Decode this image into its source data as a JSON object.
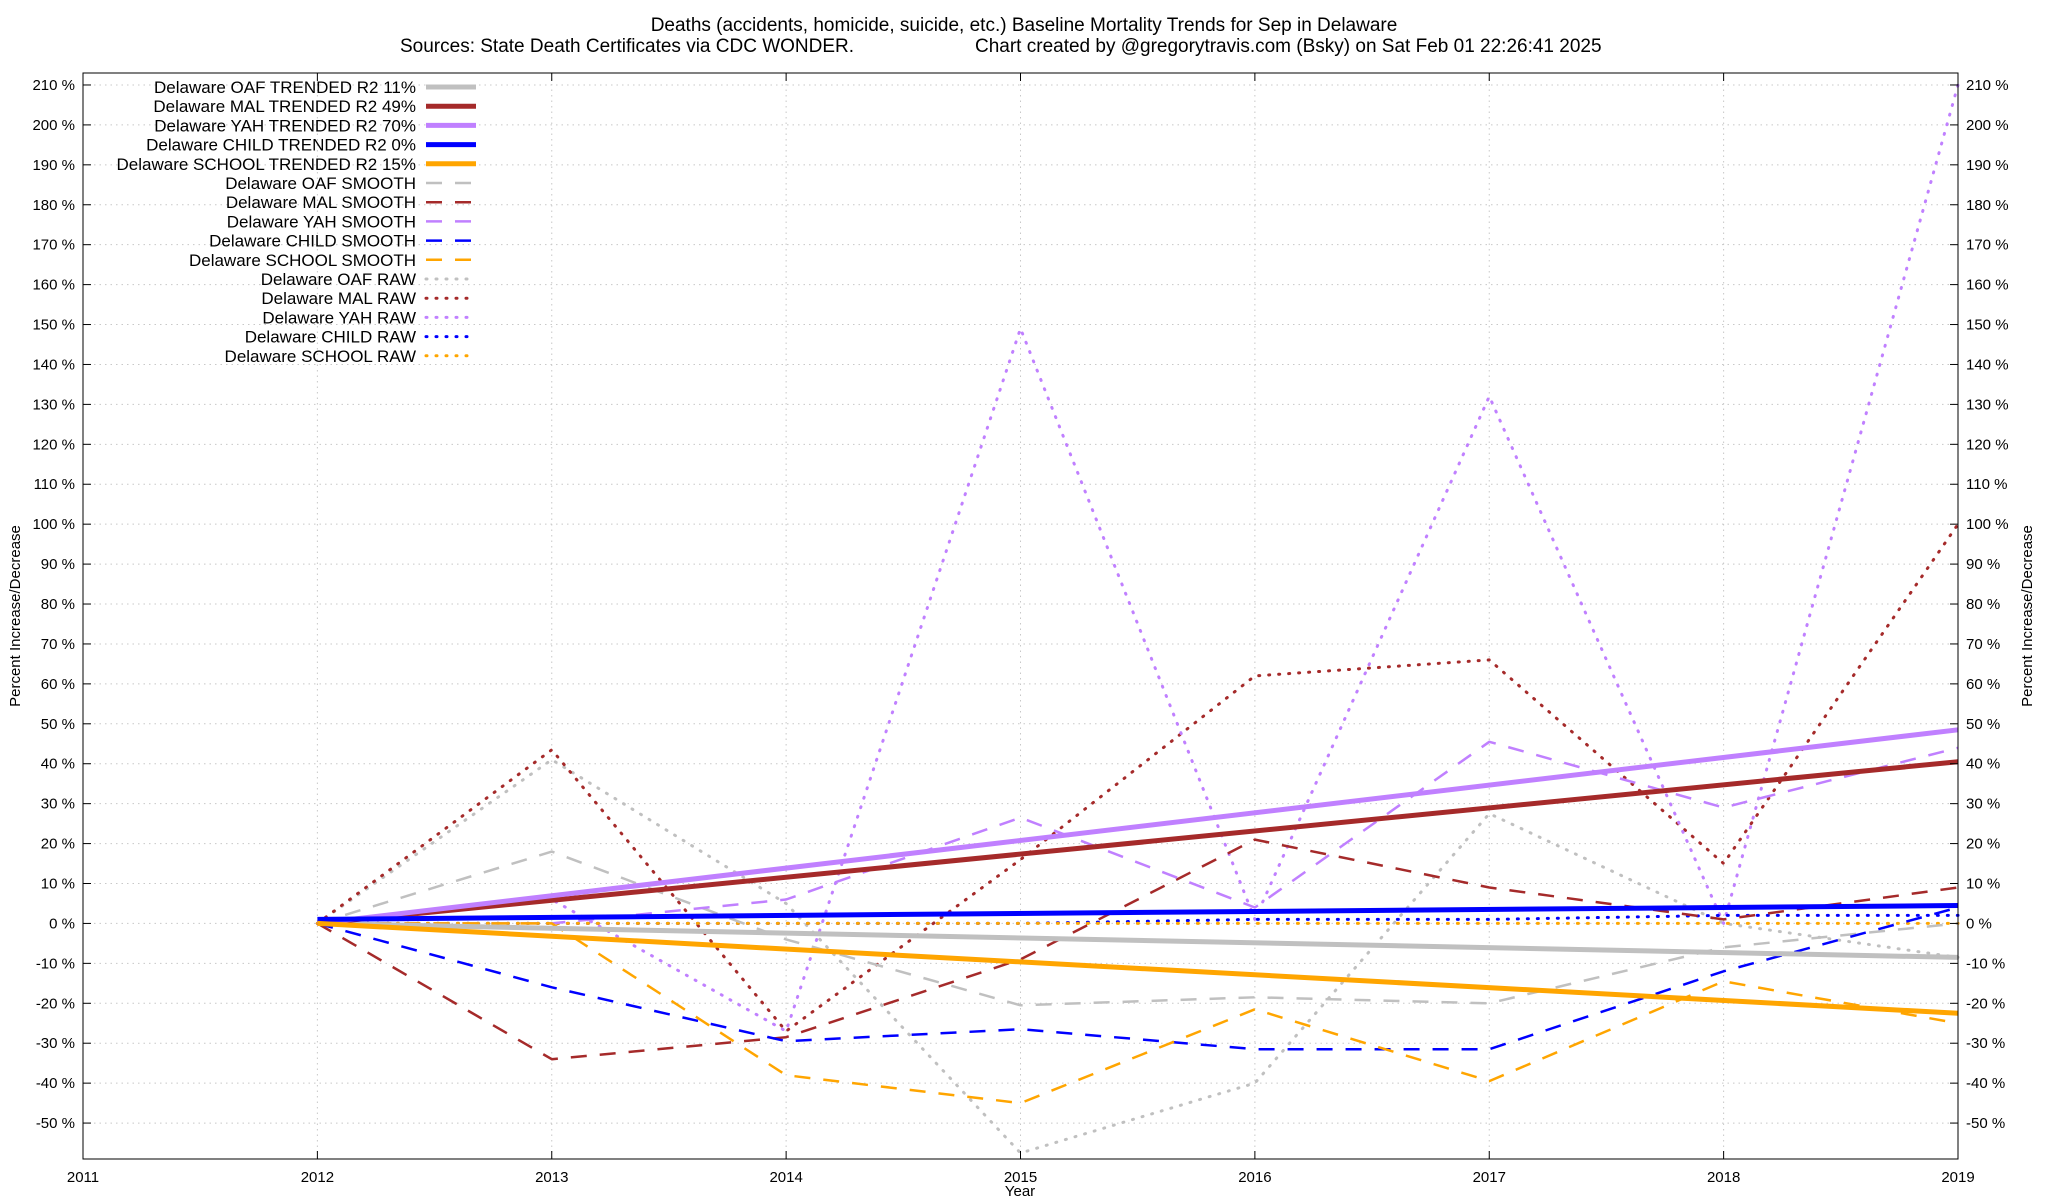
{
  "chart_data": {
    "type": "line",
    "title": "Deaths (accidents, homicide, suicide, etc.)  Baseline Mortality Trends for Sep in Delaware",
    "subtitle_left": "Sources: State Death Certificates via CDC WONDER.",
    "subtitle_right": "Chart created by @gregorytravis.com (Bsky) on Sat Feb 01 22:26:41 2025",
    "xlabel": "Year",
    "ylabel": "Percent Increase/Decrease",
    "ylabel_right": "Percent Increase/Decrease",
    "xlim": [
      2011,
      2019
    ],
    "ylim": [
      -59,
      213
    ],
    "x_ticks": [
      2011,
      2012,
      2013,
      2014,
      2015,
      2016,
      2017,
      2018,
      2019
    ],
    "x_tick_labels": [
      "2011",
      "2012",
      "2013",
      "2014",
      "2015",
      "2016",
      "2017",
      "2018",
      "2019"
    ],
    "y_ticks": [
      -50,
      -40,
      -30,
      -20,
      -10,
      0,
      10,
      20,
      30,
      40,
      50,
      60,
      70,
      80,
      90,
      100,
      110,
      120,
      130,
      140,
      150,
      160,
      170,
      180,
      190,
      200,
      210
    ],
    "y_tick_labels": [
      "-50 %",
      "-40 %",
      "-30 %",
      "-20 %",
      "-10 %",
      "0 %",
      "10 %",
      "20 %",
      "30 %",
      "40 %",
      "50 %",
      "60 %",
      "70 %",
      "80 %",
      "90 %",
      "100 %",
      "110 %",
      "120 %",
      "130 %",
      "140 %",
      "150 %",
      "160 %",
      "170 %",
      "180 %",
      "190 %",
      "200 %",
      "210 %"
    ],
    "grid": true,
    "legend_position": "top-left",
    "series": [
      {
        "name": "Delaware OAF TRENDED R2  11%",
        "style": "solid",
        "color": "#c0c0c0",
        "x": [
          2012,
          2019
        ],
        "values": [
          0,
          -8.5
        ]
      },
      {
        "name": "Delaware MAL TRENDED R2  49%",
        "style": "solid",
        "color": "#a52a2a",
        "x": [
          2012,
          2019
        ],
        "values": [
          0,
          40.5
        ]
      },
      {
        "name": "Delaware YAH TRENDED R2  70%",
        "style": "solid",
        "color": "#c080ff",
        "x": [
          2012,
          2019
        ],
        "values": [
          0,
          48.5
        ]
      },
      {
        "name": "Delaware CHILD TRENDED R2  0%",
        "style": "solid",
        "color": "#0000ff",
        "x": [
          2012,
          2019
        ],
        "values": [
          1,
          4.5
        ]
      },
      {
        "name": "Delaware SCHOOL TRENDED R2  15%",
        "style": "solid",
        "color": "#ffa500",
        "x": [
          2012,
          2019
        ],
        "values": [
          0,
          -22.5
        ]
      },
      {
        "name": "Delaware OAF SMOOTH",
        "style": "dashed",
        "color": "#c0c0c0",
        "x": [
          2012,
          2013,
          2014,
          2015,
          2016,
          2017,
          2018,
          2019
        ],
        "values": [
          0,
          18,
          -4,
          -20.5,
          -18.5,
          -20,
          -6,
          0
        ]
      },
      {
        "name": "Delaware MAL SMOOTH",
        "style": "dashed",
        "color": "#a52a2a",
        "x": [
          2012,
          2013,
          2014,
          2015,
          2016,
          2017,
          2018,
          2019
        ],
        "values": [
          0,
          -34,
          -28.5,
          -9,
          21,
          9,
          1,
          9
        ]
      },
      {
        "name": "Delaware YAH SMOOTH",
        "style": "dashed",
        "color": "#c080ff",
        "x": [
          2012,
          2013,
          2014,
          2015,
          2016,
          2017,
          2018,
          2019
        ],
        "values": [
          0,
          0,
          6,
          26.5,
          4,
          45.5,
          29,
          44
        ]
      },
      {
        "name": "Delaware CHILD SMOOTH",
        "style": "dashed",
        "color": "#0000ff",
        "x": [
          2012,
          2013,
          2014,
          2015,
          2016,
          2017,
          2018,
          2019
        ],
        "values": [
          0,
          -16,
          -29.5,
          -26.5,
          -31.5,
          -31.5,
          -12,
          4
        ]
      },
      {
        "name": "Delaware SCHOOL SMOOTH",
        "style": "dashed",
        "color": "#ffa500",
        "x": [
          2012,
          2013,
          2014,
          2015,
          2016,
          2017,
          2018,
          2019
        ],
        "values": [
          0,
          0,
          -38,
          -45,
          -21.5,
          -39.5,
          -14.5,
          -25
        ]
      },
      {
        "name": "Delaware OAF RAW",
        "style": "dotted",
        "color": "#c0c0c0",
        "x": [
          2012,
          2013,
          2014,
          2015,
          2016,
          2017,
          2018,
          2019
        ],
        "values": [
          0,
          41,
          5,
          -57.5,
          -40,
          27.5,
          0,
          -8.5
        ]
      },
      {
        "name": "Delaware MAL RAW",
        "style": "dotted",
        "color": "#a52a2a",
        "x": [
          2012,
          2013,
          2014,
          2015,
          2016,
          2017,
          2018,
          2019
        ],
        "values": [
          0,
          43.5,
          -27,
          16,
          62,
          66,
          15,
          100
        ]
      },
      {
        "name": "Delaware YAH RAW",
        "style": "dotted",
        "color": "#c080ff",
        "x": [
          2012,
          2013,
          2014,
          2015,
          2016,
          2017,
          2018,
          2019
        ],
        "values": [
          0,
          6,
          -27,
          149,
          1,
          132,
          0,
          210
        ]
      },
      {
        "name": "Delaware CHILD RAW",
        "style": "dotted",
        "color": "#0000ff",
        "x": [
          2012,
          2013,
          2014,
          2015,
          2016,
          2017,
          2018,
          2019
        ],
        "values": [
          0,
          0,
          0,
          0,
          1,
          1,
          2,
          2
        ]
      },
      {
        "name": "Delaware SCHOOL RAW",
        "style": "dotted",
        "color": "#ffa500",
        "x": [
          2012,
          2013,
          2014,
          2015,
          2016,
          2017,
          2018,
          2019
        ],
        "values": [
          0,
          0,
          0,
          0,
          0,
          0,
          0,
          0
        ]
      }
    ]
  }
}
